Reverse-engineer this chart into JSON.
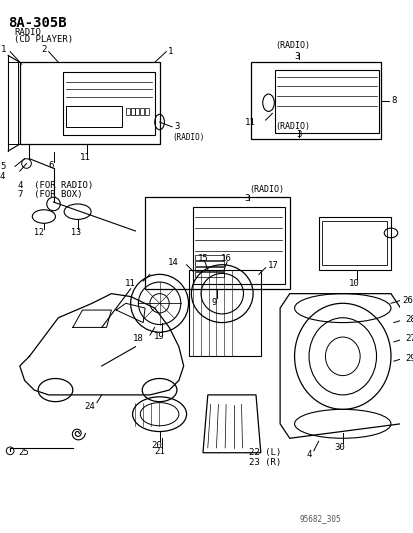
{
  "title": "8A-305B",
  "subtitle_line1": "RADIO",
  "subtitle_line2": "(CD PLAYER)",
  "background_color": "#ffffff",
  "line_color": "#000000",
  "text_color": "#000000",
  "fig_width": 4.14,
  "fig_height": 5.33,
  "dpi": 100,
  "watermark": "95682_305",
  "watermark_color": "#555555",
  "labels": {
    "radio_label": "(RADIO)",
    "for_radio": "4  (FOR RADIO)",
    "for_box": "7  (FOR BOX)",
    "num22": "22 (L)",
    "num23": "23 (R)"
  },
  "part_numbers": [
    1,
    2,
    3,
    4,
    5,
    6,
    7,
    8,
    9,
    10,
    11,
    12,
    13,
    14,
    15,
    16,
    17,
    18,
    19,
    20,
    21,
    22,
    23,
    24,
    25,
    26,
    27,
    28,
    29,
    30
  ]
}
